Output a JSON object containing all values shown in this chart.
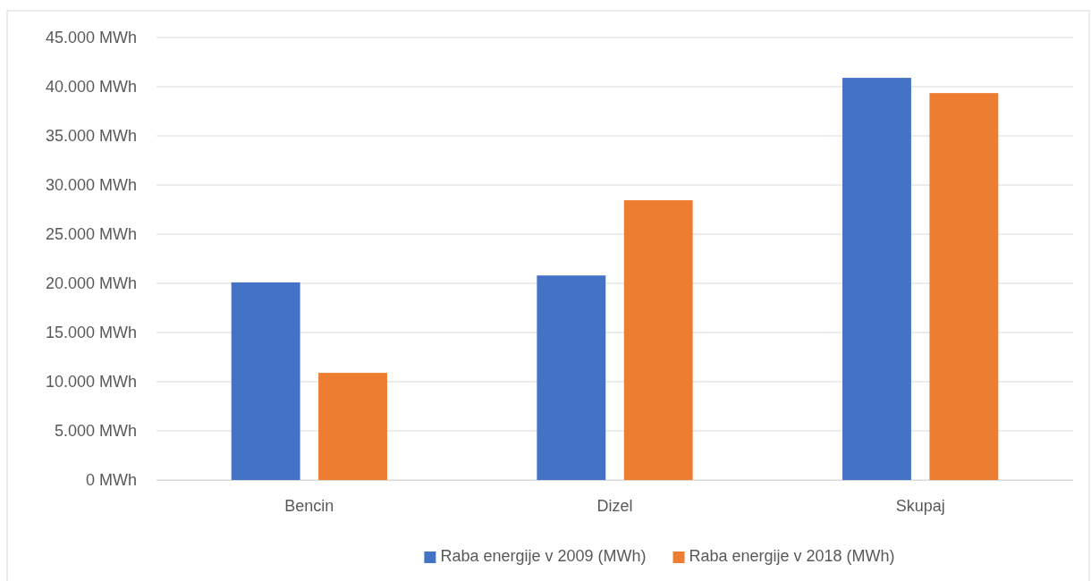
{
  "chart_data": {
    "type": "bar",
    "categories": [
      "Bencin",
      "Dizel",
      "Skupaj"
    ],
    "series": [
      {
        "name": "Raba energije v 2009 (MWh)",
        "color": "#4472c4",
        "values": [
          20100,
          20800,
          40900
        ]
      },
      {
        "name": "Raba energije v 2018 (MWh)",
        "color": "#ed7d31",
        "values": [
          10900,
          28450,
          39350
        ]
      }
    ],
    "ylim": [
      0,
      45000
    ],
    "yticks": [
      {
        "value": 0,
        "label": "0 MWh"
      },
      {
        "value": 5000,
        "label": "5.000 MWh"
      },
      {
        "value": 10000,
        "label": "10.000 MWh"
      },
      {
        "value": 15000,
        "label": "15.000 MWh"
      },
      {
        "value": 20000,
        "label": "20.000 MWh"
      },
      {
        "value": 25000,
        "label": "25.000 MWh"
      },
      {
        "value": 30000,
        "label": "30.000 MWh"
      },
      {
        "value": 35000,
        "label": "35.000 MWh"
      },
      {
        "value": 40000,
        "label": "40.000 MWh"
      },
      {
        "value": 45000,
        "label": "45.000 MWh"
      }
    ],
    "grid": "y",
    "legend": "bottom"
  }
}
